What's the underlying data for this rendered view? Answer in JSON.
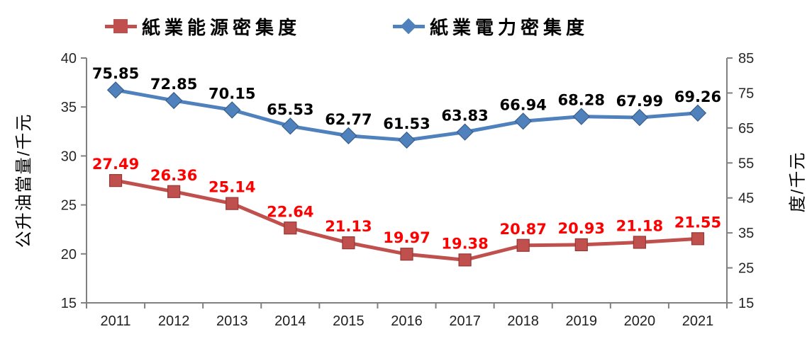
{
  "chart_data": {
    "type": "line",
    "categories": [
      "2011",
      "2012",
      "2013",
      "2014",
      "2015",
      "2016",
      "2017",
      "2018",
      "2019",
      "2020",
      "2021"
    ],
    "series": [
      {
        "name": "紙業能源密集度",
        "axis": "left",
        "marker": "square",
        "color": "#C0504D",
        "marker_stroke": "#953735",
        "label_color": "#FF0000",
        "values": [
          27.49,
          26.36,
          25.14,
          22.64,
          21.13,
          19.97,
          19.38,
          20.87,
          20.93,
          21.18,
          21.55
        ]
      },
      {
        "name": "紙業電力密集度",
        "axis": "right",
        "marker": "diamond",
        "color": "#4F81BD",
        "marker_stroke": "#385D8A",
        "label_color": "#000000",
        "values": [
          75.85,
          72.85,
          70.15,
          65.53,
          62.77,
          61.53,
          63.83,
          66.94,
          68.28,
          67.99,
          69.26
        ]
      }
    ],
    "left_axis": {
      "label": "公升油當量/千元",
      "min": 15,
      "max": 40,
      "ticks": [
        40,
        35,
        30,
        25,
        20,
        15
      ]
    },
    "right_axis": {
      "label": "度/千元",
      "min": 15,
      "max": 85,
      "ticks": [
        85,
        75,
        65,
        55,
        45,
        35,
        25,
        15
      ]
    },
    "grid": false,
    "legend_position": "top",
    "axis_color": "#808080",
    "tick_color": "#262626"
  }
}
